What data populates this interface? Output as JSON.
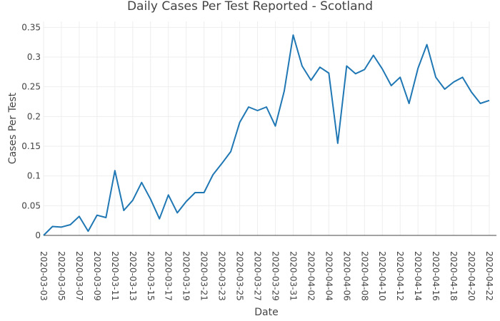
{
  "chart_data": {
    "type": "line",
    "title": "Daily Cases Per Test Reported - Scotland",
    "xlabel": "Date",
    "ylabel": "Cases Per Test",
    "ylim": [
      0,
      0.36
    ],
    "y_ticks": [
      0,
      0.05,
      0.1,
      0.15,
      0.2,
      0.25,
      0.3,
      0.35
    ],
    "y_tick_labels": [
      "0",
      "0.05",
      "0.1",
      "0.15",
      "0.2",
      "0.25",
      "0.3",
      "0.35"
    ],
    "x_ticks": [
      "2020-03-03",
      "2020-03-05",
      "2020-03-07",
      "2020-03-09",
      "2020-03-11",
      "2020-03-13",
      "2020-03-15",
      "2020-03-17",
      "2020-03-19",
      "2020-03-21",
      "2020-03-23",
      "2020-03-25",
      "2020-03-27",
      "2020-03-29",
      "2020-03-31",
      "2020-04-02",
      "2020-04-04",
      "2020-04-06",
      "2020-04-08",
      "2020-04-10",
      "2020-04-12",
      "2020-04-14",
      "2020-04-16",
      "2020-04-18",
      "2020-04-20",
      "2020-04-22"
    ],
    "grid": true,
    "legend": "none",
    "series": [
      {
        "color": "#1f77b4",
        "x": [
          "2020-03-03",
          "2020-03-04",
          "2020-03-05",
          "2020-03-06",
          "2020-03-07",
          "2020-03-08",
          "2020-03-09",
          "2020-03-10",
          "2020-03-11",
          "2020-03-12",
          "2020-03-13",
          "2020-03-14",
          "2020-03-15",
          "2020-03-16",
          "2020-03-17",
          "2020-03-18",
          "2020-03-19",
          "2020-03-20",
          "2020-03-21",
          "2020-03-22",
          "2020-03-23",
          "2020-03-24",
          "2020-03-25",
          "2020-03-26",
          "2020-03-27",
          "2020-03-28",
          "2020-03-29",
          "2020-03-30",
          "2020-03-31",
          "2020-04-01",
          "2020-04-02",
          "2020-04-03",
          "2020-04-04",
          "2020-04-05",
          "2020-04-06",
          "2020-04-07",
          "2020-04-08",
          "2020-04-09",
          "2020-04-10",
          "2020-04-11",
          "2020-04-12",
          "2020-04-13",
          "2020-04-14",
          "2020-04-15",
          "2020-04-16",
          "2020-04-17",
          "2020-04-18",
          "2020-04-19",
          "2020-04-20",
          "2020-04-21",
          "2020-04-22"
        ],
        "values": [
          0.0,
          0.015,
          0.014,
          0.018,
          0.032,
          0.007,
          0.034,
          0.03,
          0.109,
          0.042,
          0.059,
          0.089,
          0.061,
          0.028,
          0.068,
          0.038,
          0.057,
          0.072,
          0.072,
          0.102,
          0.121,
          0.141,
          0.19,
          0.216,
          0.21,
          0.216,
          0.184,
          0.243,
          0.337,
          0.285,
          0.261,
          0.283,
          0.273,
          0.155,
          0.285,
          0.272,
          0.279,
          0.303,
          0.28,
          0.252,
          0.266,
          0.222,
          0.281,
          0.321,
          0.266,
          0.246,
          0.258,
          0.266,
          0.241,
          0.222,
          0.227
        ]
      }
    ]
  }
}
